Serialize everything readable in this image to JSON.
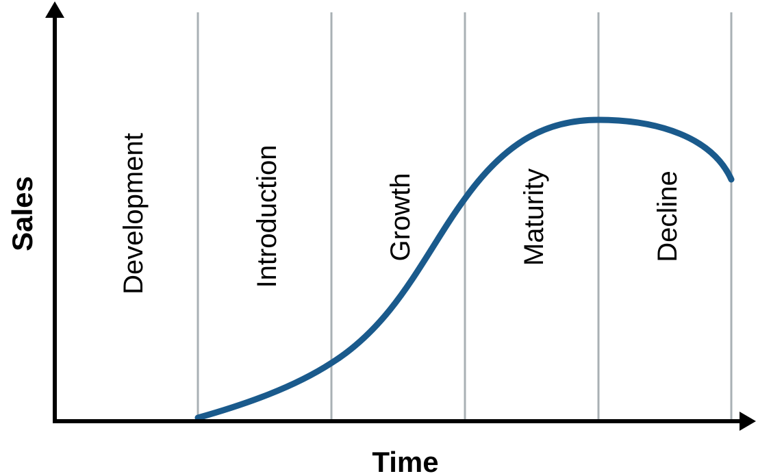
{
  "axes": {
    "x_label": "Time",
    "y_label": "Sales"
  },
  "stages": [
    "Development",
    "Introduction",
    "Growth",
    "Maturity",
    "Decline"
  ],
  "colors": {
    "curve": "#1a5a8c",
    "divider": "#a9b0b4",
    "axis": "#000000"
  }
}
